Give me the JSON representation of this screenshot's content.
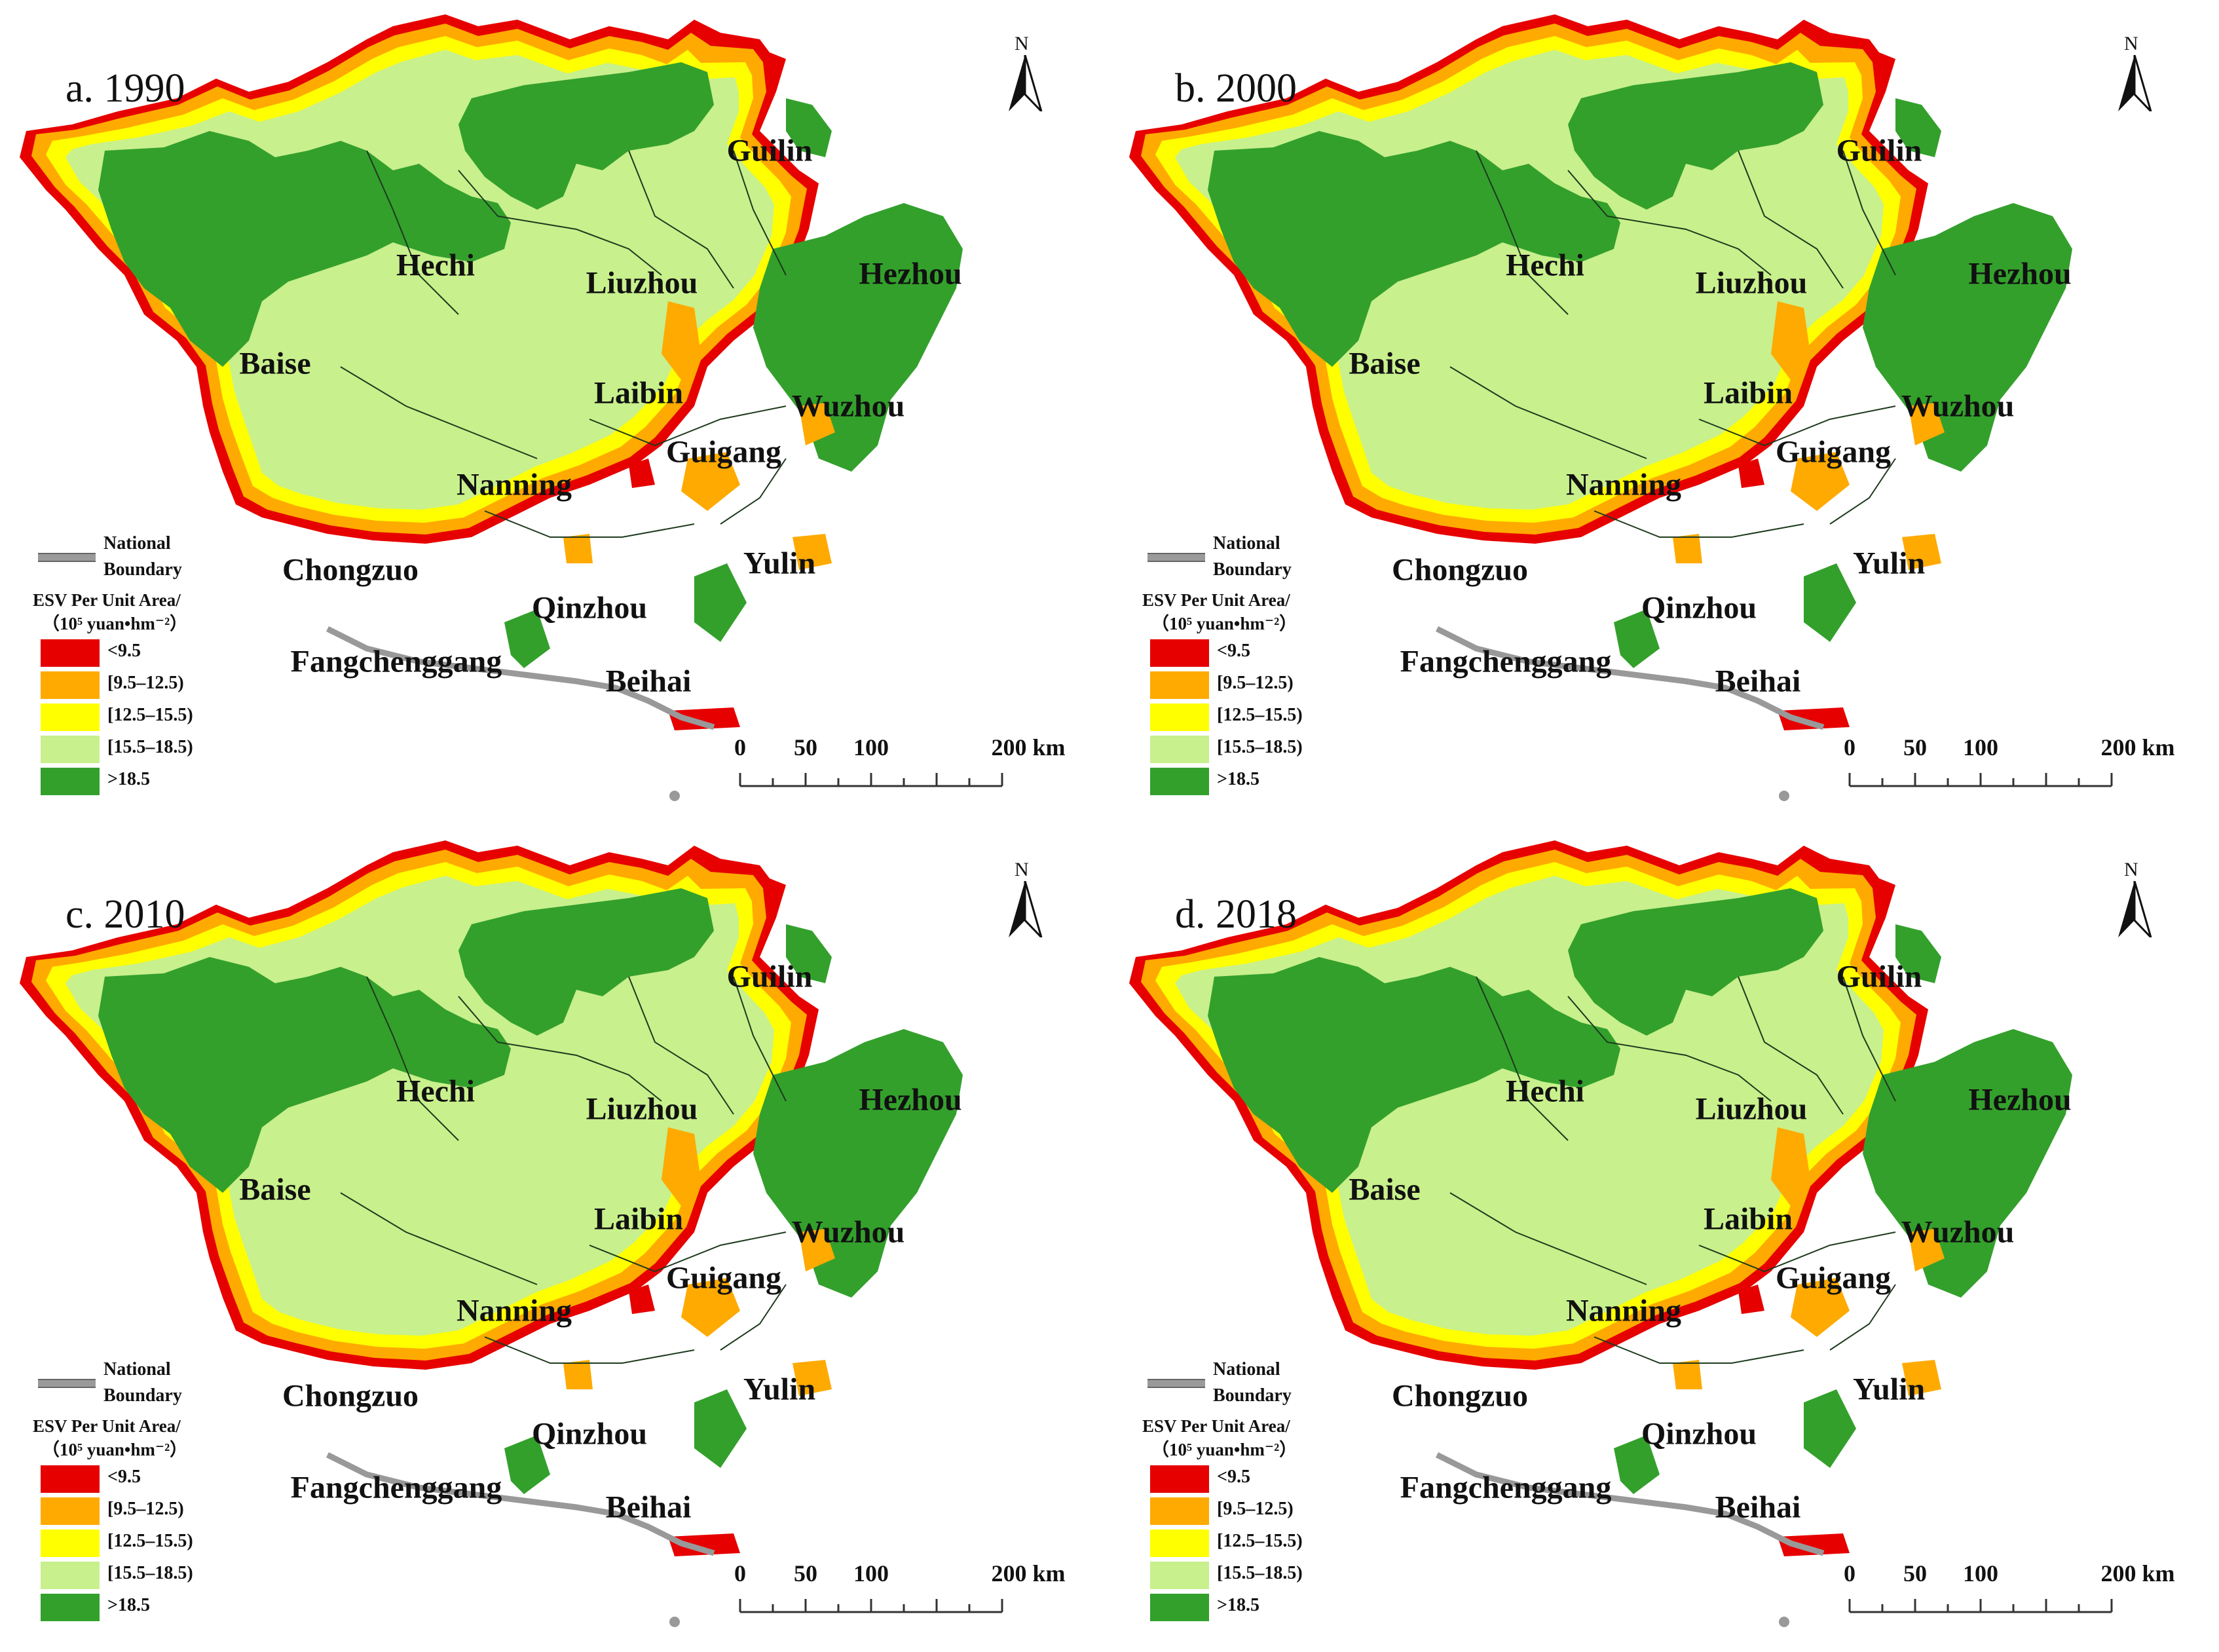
{
  "figure": {
    "panels": [
      {
        "id": "a",
        "title": "a. 1990"
      },
      {
        "id": "b",
        "title": "b. 2000"
      },
      {
        "id": "c",
        "title": "c. 2010"
      },
      {
        "id": "d",
        "title": "d. 2018"
      }
    ],
    "cities": [
      "Guilin",
      "Hechi",
      "Liuzhou",
      "Hezhou",
      "Baise",
      "Laibin",
      "Wuzhou",
      "Guigang",
      "Nanning",
      "Chongzuo",
      "Yulin",
      "Qinzhou",
      "Fangchenggang",
      "Beihai"
    ],
    "north_arrow": {
      "letter": "N",
      "icon": "north-arrow-icon"
    },
    "legend": {
      "national_boundary_label": "National Boundary",
      "title": "ESV Per Unit Area/",
      "unit": "（10⁵ yuan•hm⁻²）",
      "classes": [
        {
          "label": "<9.5",
          "color": "#e60000"
        },
        {
          "label": "[9.5–12.5)",
          "color": "#ffaa00"
        },
        {
          "label": "[12.5–15.5)",
          "color": "#ffff00"
        },
        {
          "label": "[15.5–18.5)",
          "color": "#c8f08c"
        },
        {
          "label": ">18.5",
          "color": "#33a02c"
        }
      ]
    },
    "scalebar": {
      "ticks": [
        "0",
        "50",
        "100",
        "200 km"
      ]
    }
  }
}
